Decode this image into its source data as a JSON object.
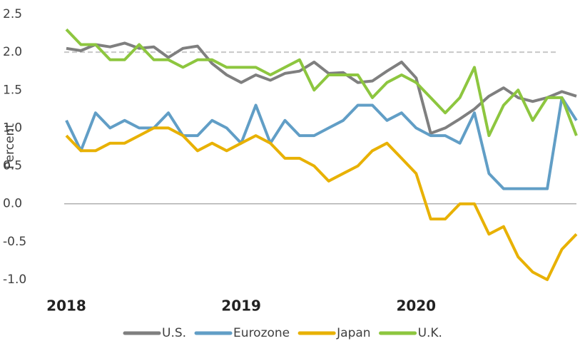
{
  "chart_data": {
    "type": "line",
    "y_label": "Percent",
    "categories": [
      "2018",
      null,
      null,
      null,
      null,
      null,
      null,
      null,
      null,
      null,
      null,
      null,
      "2019",
      null,
      null,
      null,
      null,
      null,
      null,
      null,
      null,
      null,
      null,
      null,
      "2020",
      null,
      null,
      null,
      null,
      null,
      null,
      null,
      null,
      null,
      null,
      null
    ],
    "series": [
      {
        "name": "U.S.",
        "color": "#7f7f7f",
        "values": [
          2.05,
          2.02,
          2.1,
          2.07,
          2.12,
          2.05,
          2.07,
          1.93,
          2.05,
          2.08,
          1.85,
          1.7,
          1.6,
          1.7,
          1.63,
          1.72,
          1.75,
          1.87,
          1.72,
          1.73,
          1.6,
          1.62,
          1.75,
          1.87,
          1.66,
          0.93,
          1.0,
          1.12,
          1.25,
          1.42,
          1.53,
          1.4,
          1.35,
          1.4,
          1.48,
          1.42
        ]
      },
      {
        "name": "Eurozone",
        "color": "#619ec6",
        "values": [
          1.1,
          0.7,
          1.2,
          1.0,
          1.1,
          1.0,
          1.0,
          1.2,
          0.9,
          0.9,
          1.1,
          1.0,
          0.8,
          1.3,
          0.8,
          1.1,
          0.9,
          0.9,
          1.0,
          1.1,
          1.3,
          1.3,
          1.1,
          1.2,
          1.0,
          0.9,
          0.9,
          0.8,
          1.2,
          0.4,
          0.2,
          0.2,
          0.2,
          0.2,
          1.4,
          1.1
        ]
      },
      {
        "name": "Japan",
        "color": "#e8b102",
        "values": [
          0.9,
          0.7,
          0.7,
          0.8,
          0.8,
          0.9,
          1.0,
          1.0,
          0.9,
          0.7,
          0.8,
          0.7,
          0.8,
          0.9,
          0.8,
          0.6,
          0.6,
          0.5,
          0.3,
          0.4,
          0.5,
          0.7,
          0.8,
          0.6,
          0.4,
          -0.2,
          -0.2,
          0.0,
          0.0,
          -0.4,
          -0.3,
          -0.7,
          -0.9,
          -1.0,
          -0.6,
          -0.4
        ]
      },
      {
        "name": "U.K.",
        "color": "#8dc63f",
        "values": [
          2.3,
          2.1,
          2.1,
          1.9,
          1.9,
          2.1,
          1.9,
          1.9,
          1.8,
          1.9,
          1.9,
          1.8,
          1.8,
          1.8,
          1.7,
          1.8,
          1.9,
          1.5,
          1.7,
          1.7,
          1.7,
          1.4,
          1.6,
          1.7,
          1.6,
          1.4,
          1.2,
          1.4,
          1.8,
          0.9,
          1.3,
          1.5,
          1.1,
          1.4,
          1.4,
          0.9
        ]
      }
    ],
    "hline": 2,
    "ylim": [
      -1,
      2.5
    ],
    "yticks": [
      {
        "value": 2.5,
        "label": "2.5"
      },
      {
        "value": 2,
        "label": "2.0"
      },
      {
        "value": 1.5,
        "label": "1.5"
      },
      {
        "value": 1,
        "label": "1.0"
      },
      {
        "value": 0.5,
        "label": "0.5"
      },
      {
        "value": 0,
        "label": "0.0"
      },
      {
        "value": -0.5,
        "label": "-0.5"
      },
      {
        "value": -1,
        "label": "-1.0"
      }
    ],
    "legend": "bottom"
  }
}
